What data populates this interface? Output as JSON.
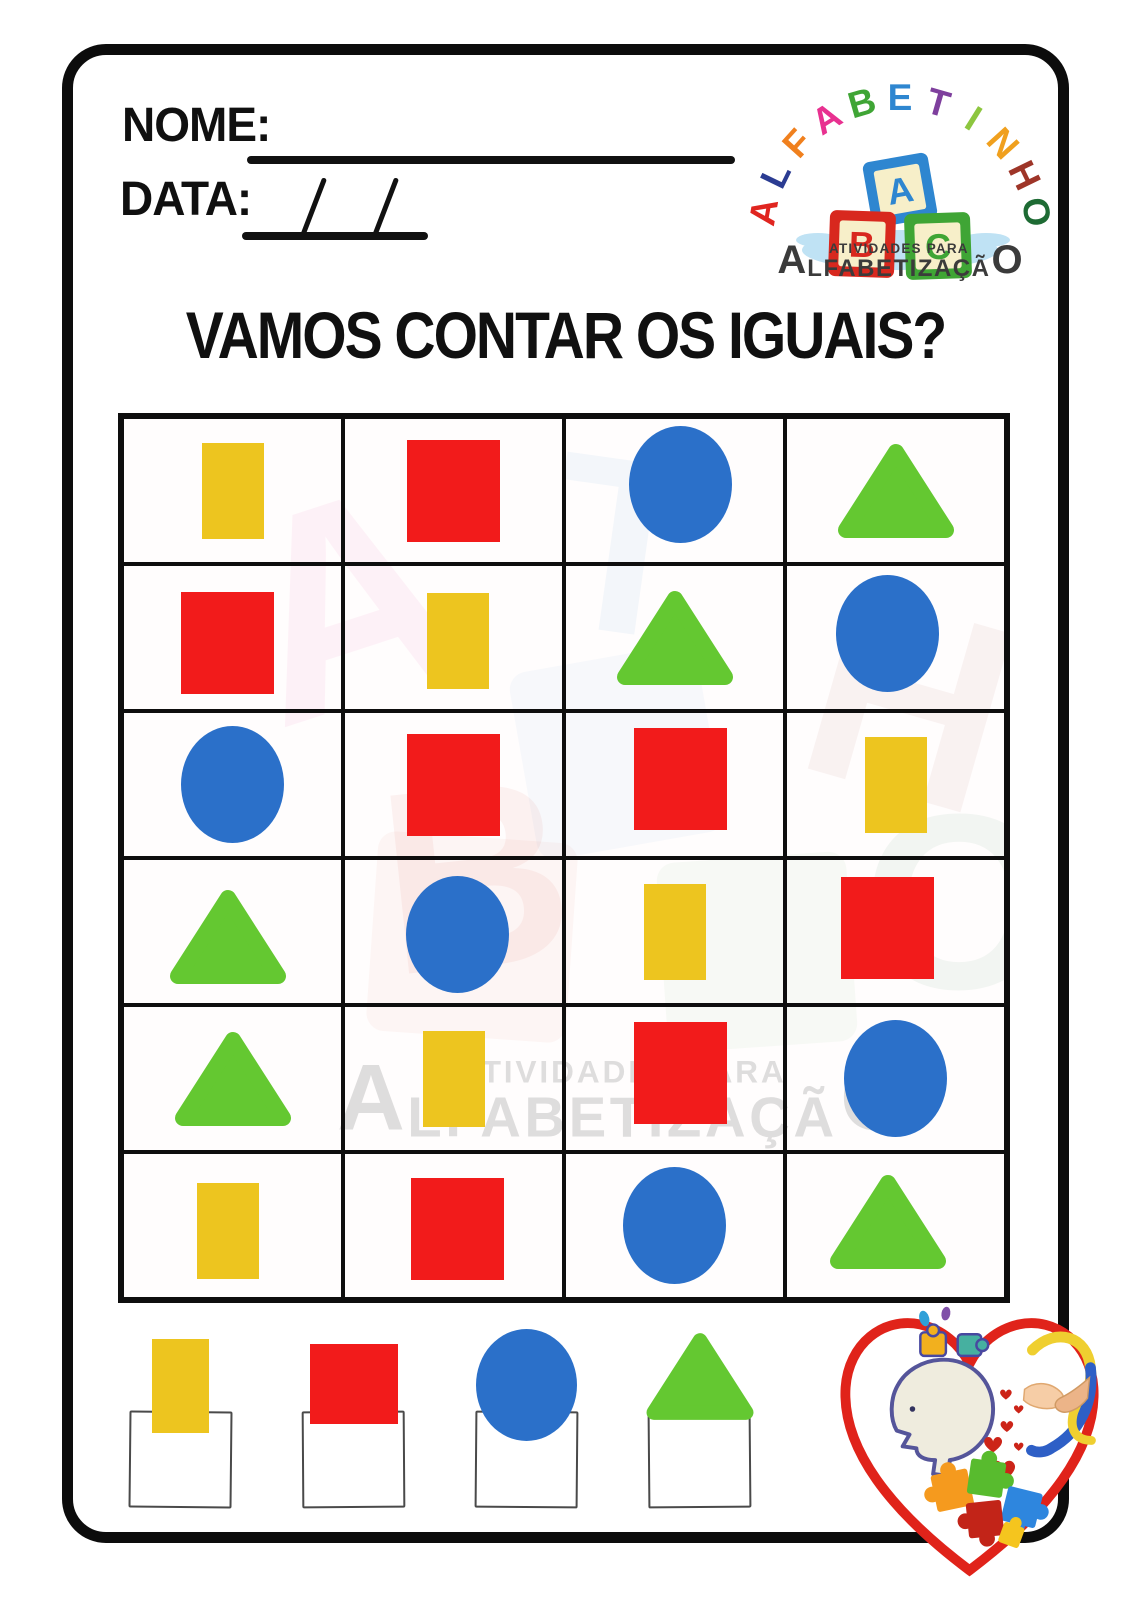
{
  "header": {
    "name_label": "NOME:",
    "date_label": "DATA:"
  },
  "logo": {
    "brand": "ALFABETINHO",
    "letters": [
      {
        "char": "A",
        "color": "#E02520"
      },
      {
        "char": "L",
        "color": "#2B3C92"
      },
      {
        "char": "F",
        "color": "#F0801E"
      },
      {
        "char": "A",
        "color": "#E83190"
      },
      {
        "char": "B",
        "color": "#3FA535"
      },
      {
        "char": "E",
        "color": "#2E86D0"
      },
      {
        "char": "T",
        "color": "#7E3F9D"
      },
      {
        "char": "I",
        "color": "#8DC63F"
      },
      {
        "char": "N",
        "color": "#F0A01E"
      },
      {
        "char": "H",
        "color": "#9E3528"
      },
      {
        "char": "O",
        "color": "#1E6B34"
      }
    ],
    "blocks": [
      {
        "letter": "A",
        "color": "#2E86D0"
      },
      {
        "letter": "B",
        "color": "#D8281E"
      },
      {
        "letter": "C",
        "color": "#3FA535"
      }
    ],
    "tagline": {
      "big_first": "A",
      "top": "ATIVIDADES PARA",
      "middle": "LFABETIZAÇÃ",
      "big_last": "O"
    }
  },
  "title": "VAMOS CONTAR OS IGUAIS?",
  "shape_colors": {
    "yellow": "#EDC51F",
    "red": "#F21B1B",
    "blue": "#2B70C9",
    "green": "#64C831"
  },
  "grid": {
    "rows": [
      [
        "yellow-rectangle",
        "red-square",
        "blue-circle",
        "green-triangle"
      ],
      [
        "red-square",
        "yellow-rectangle",
        "green-triangle",
        "blue-circle"
      ],
      [
        "blue-circle",
        "red-square",
        "red-square",
        "yellow-rectangle"
      ],
      [
        "green-triangle",
        "blue-circle",
        "yellow-rectangle",
        "red-square"
      ],
      [
        "green-triangle",
        "yellow-rectangle",
        "red-square",
        "blue-circle"
      ],
      [
        "yellow-rectangle",
        "red-square",
        "blue-circle",
        "green-triangle"
      ]
    ]
  },
  "answer_row": {
    "items": [
      {
        "shape": "yellow-rectangle"
      },
      {
        "shape": "red-square"
      },
      {
        "shape": "blue-circle"
      },
      {
        "shape": "green-triangle"
      }
    ]
  },
  "watermark": {
    "ghost_letters": [
      {
        "char": "A",
        "color": "#E83190"
      },
      {
        "char": "T",
        "color": "#2E86D0"
      },
      {
        "char": "B",
        "color": "#D8281E"
      },
      {
        "char": "H",
        "color": "#9E3528"
      },
      {
        "char": "O",
        "color": "#1E6B34"
      }
    ]
  }
}
